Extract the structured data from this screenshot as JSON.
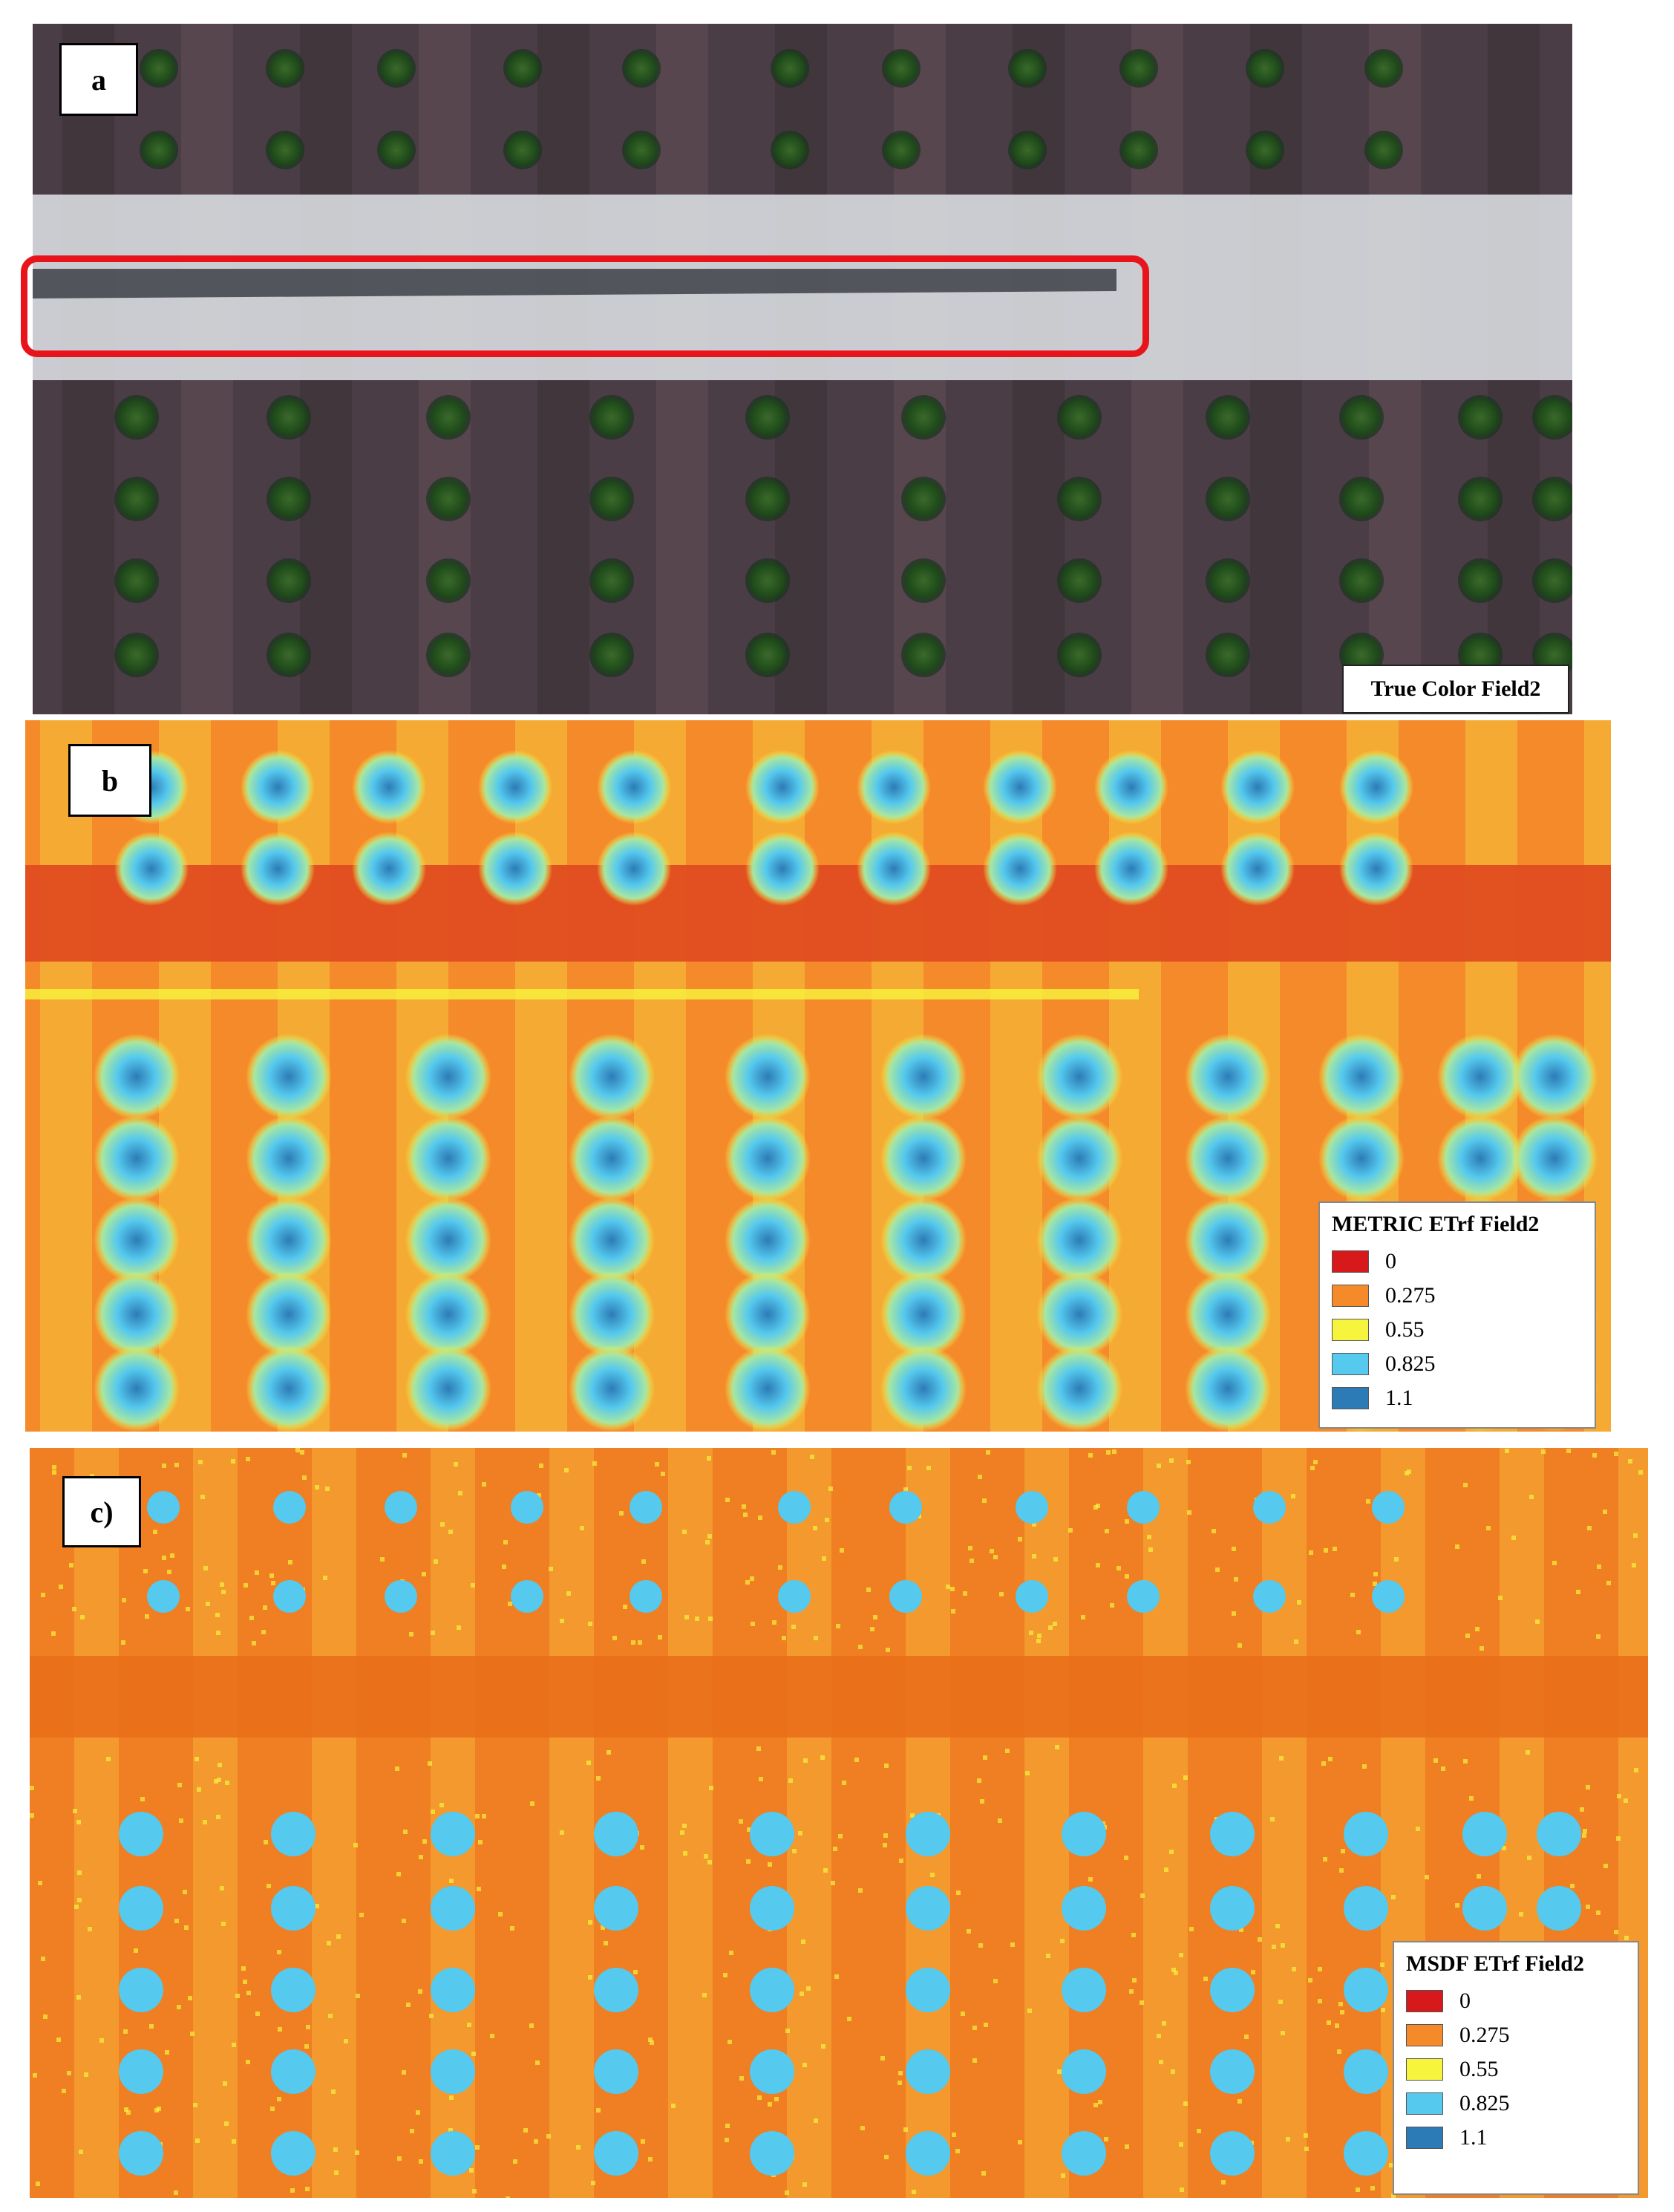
{
  "panels": {
    "a": {
      "tag": "a",
      "caption": "True Color Field2"
    },
    "b": {
      "tag": "b",
      "legend": {
        "title": "METRIC ETrf Field2",
        "items": [
          {
            "label": "0",
            "color": "#d7191c"
          },
          {
            "label": "0.275",
            "color": "#f58a2a"
          },
          {
            "label": "0.55",
            "color": "#f7f43d"
          },
          {
            "label": "0.825",
            "color": "#55c9ee"
          },
          {
            "label": "1.1",
            "color": "#2c7bb6"
          }
        ]
      }
    },
    "c": {
      "tag": "c)",
      "legend": {
        "title": "MSDF ETrf Field2",
        "items": [
          {
            "label": "0",
            "color": "#d7191c"
          },
          {
            "label": "0.275",
            "color": "#f58a2a"
          },
          {
            "label": "0.55",
            "color": "#f7f43d"
          },
          {
            "label": "0.825",
            "color": "#55c9ee"
          },
          {
            "label": "1.1",
            "color": "#2c7bb6"
          }
        ]
      }
    }
  }
}
